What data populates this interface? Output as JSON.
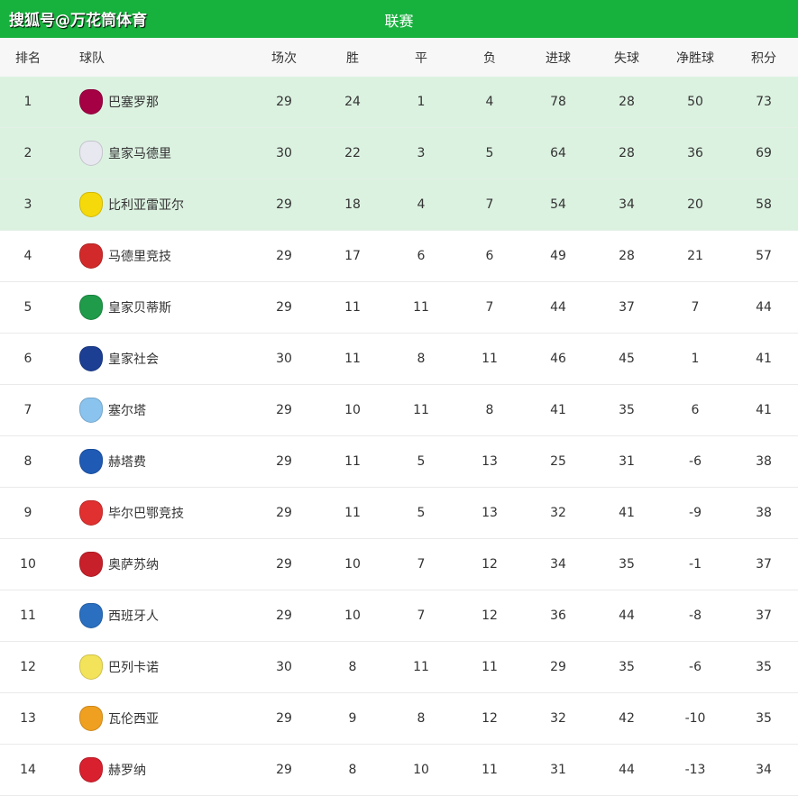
{
  "header": {
    "brand": "搜狐号@万花筒体育",
    "title": "联赛",
    "bg": "#17b13d"
  },
  "columns": [
    "排名",
    "球队",
    "场次",
    "胜",
    "平",
    "负",
    "进球",
    "失球",
    "净胜球",
    "积分"
  ],
  "highlight_color": "#dcf2e1",
  "rows": [
    {
      "rank": "1",
      "team": "巴塞罗那",
      "logo": "barcelona-crest-icon",
      "color": "#a50044",
      "p": "29",
      "w": "24",
      "d": "1",
      "l": "4",
      "gf": "78",
      "ga": "28",
      "gd": "50",
      "pts": "73",
      "hl": true
    },
    {
      "rank": "2",
      "team": "皇家马德里",
      "logo": "real-madrid-crest-icon",
      "color": "#e8e8f0",
      "p": "30",
      "w": "22",
      "d": "3",
      "l": "5",
      "gf": "64",
      "ga": "28",
      "gd": "36",
      "pts": "69",
      "hl": true
    },
    {
      "rank": "3",
      "team": "比利亚雷亚尔",
      "logo": "villarreal-crest-icon",
      "color": "#f5d90a",
      "p": "29",
      "w": "18",
      "d": "4",
      "l": "7",
      "gf": "54",
      "ga": "34",
      "gd": "20",
      "pts": "58",
      "hl": true
    },
    {
      "rank": "4",
      "team": "马德里竞技",
      "logo": "atletico-crest-icon",
      "color": "#d22a2a",
      "p": "29",
      "w": "17",
      "d": "6",
      "l": "6",
      "gf": "49",
      "ga": "28",
      "gd": "21",
      "pts": "57"
    },
    {
      "rank": "5",
      "team": "皇家贝蒂斯",
      "logo": "betis-crest-icon",
      "color": "#1f9b4a",
      "p": "29",
      "w": "11",
      "d": "11",
      "l": "7",
      "gf": "44",
      "ga": "37",
      "gd": "7",
      "pts": "44"
    },
    {
      "rank": "6",
      "team": "皇家社会",
      "logo": "real-sociedad-crest-icon",
      "color": "#1c3f94",
      "p": "30",
      "w": "11",
      "d": "8",
      "l": "11",
      "gf": "46",
      "ga": "45",
      "gd": "1",
      "pts": "41"
    },
    {
      "rank": "7",
      "team": "塞尔塔",
      "logo": "celta-crest-icon",
      "color": "#8ac3ee",
      "p": "29",
      "w": "10",
      "d": "11",
      "l": "8",
      "gf": "41",
      "ga": "35",
      "gd": "6",
      "pts": "41"
    },
    {
      "rank": "8",
      "team": "赫塔费",
      "logo": "getafe-crest-icon",
      "color": "#1f5bb5",
      "p": "29",
      "w": "11",
      "d": "5",
      "l": "13",
      "gf": "25",
      "ga": "31",
      "gd": "-6",
      "pts": "38"
    },
    {
      "rank": "9",
      "team": "毕尔巴鄂竞技",
      "logo": "athletic-bilbao-crest-icon",
      "color": "#e03030",
      "p": "29",
      "w": "11",
      "d": "5",
      "l": "13",
      "gf": "32",
      "ga": "41",
      "gd": "-9",
      "pts": "38"
    },
    {
      "rank": "10",
      "team": "奥萨苏纳",
      "logo": "osasuna-crest-icon",
      "color": "#c8202a",
      "p": "29",
      "w": "10",
      "d": "7",
      "l": "12",
      "gf": "34",
      "ga": "35",
      "gd": "-1",
      "pts": "37"
    },
    {
      "rank": "11",
      "team": "西班牙人",
      "logo": "espanyol-crest-icon",
      "color": "#2a6fc0",
      "p": "29",
      "w": "10",
      "d": "7",
      "l": "12",
      "gf": "36",
      "ga": "44",
      "gd": "-8",
      "pts": "37"
    },
    {
      "rank": "12",
      "team": "巴列卡诺",
      "logo": "rayo-vallecano-crest-icon",
      "color": "#f3e35a",
      "p": "30",
      "w": "8",
      "d": "11",
      "l": "11",
      "gf": "29",
      "ga": "35",
      "gd": "-6",
      "pts": "35"
    },
    {
      "rank": "13",
      "team": "瓦伦西亚",
      "logo": "valencia-crest-icon",
      "color": "#f0a020",
      "p": "29",
      "w": "9",
      "d": "8",
      "l": "12",
      "gf": "32",
      "ga": "42",
      "gd": "-10",
      "pts": "35"
    },
    {
      "rank": "14",
      "team": "赫罗纳",
      "logo": "girona-crest-icon",
      "color": "#d8202e",
      "p": "29",
      "w": "8",
      "d": "10",
      "l": "11",
      "gf": "31",
      "ga": "44",
      "gd": "-13",
      "pts": "34"
    }
  ]
}
